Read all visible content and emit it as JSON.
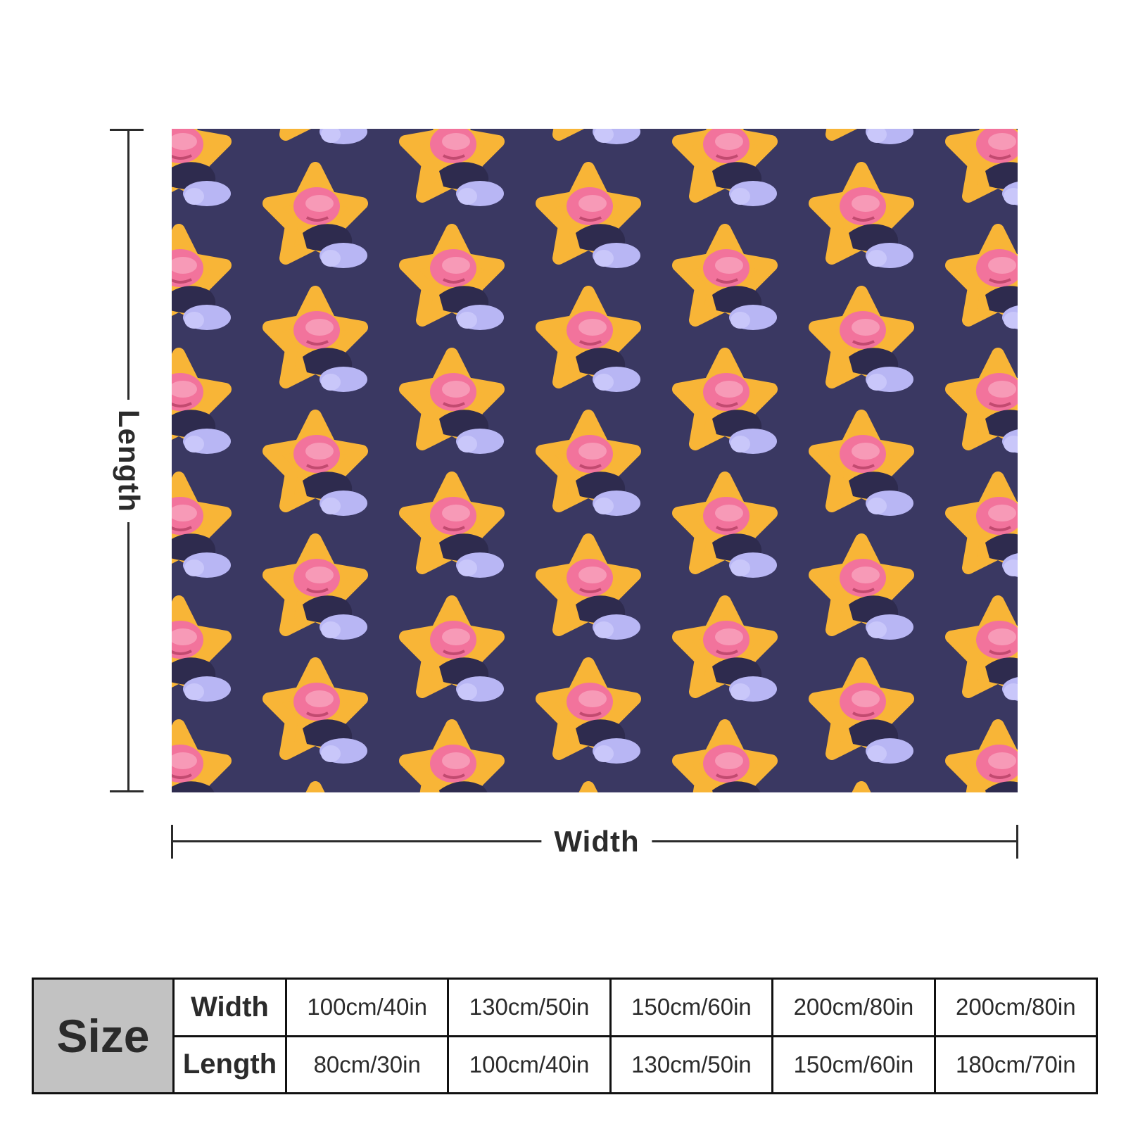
{
  "dimensions": {
    "length_label": "Length",
    "width_label": "Width"
  },
  "colors": {
    "blanket_background": "#3a3862",
    "star": "#f8b537",
    "hair": "#f2739c",
    "sock": "#b8b6f4",
    "body": "#2e2b4e"
  },
  "pattern": {
    "motif_icon": "star-hugging-child-icon"
  },
  "size_table": {
    "header": "Size",
    "rows": [
      {
        "label": "Width",
        "values": [
          "100cm/40in",
          "130cm/50in",
          "150cm/60in",
          "200cm/80in",
          "200cm/80in"
        ]
      },
      {
        "label": "Length",
        "values": [
          "80cm/30in",
          "100cm/40in",
          "130cm/50in",
          "150cm/60in",
          "180cm/70in"
        ]
      }
    ]
  }
}
